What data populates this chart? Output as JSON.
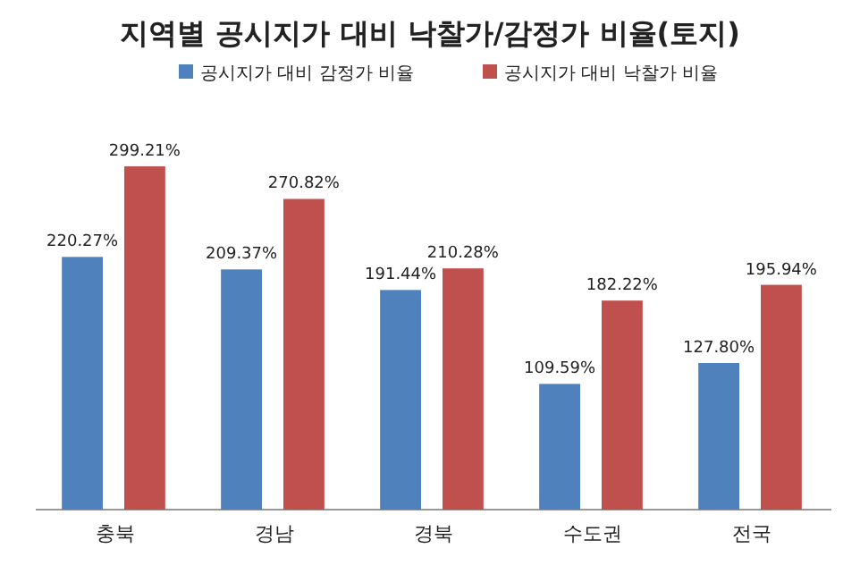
{
  "chart_data": {
    "type": "bar",
    "title": "지역별 공시지가 대비 낙찰가/감정가 비율(토지)",
    "categories": [
      "충북",
      "경남",
      "경북",
      "수도권",
      "전국"
    ],
    "series": [
      {
        "name": "공시지가 대비 감정가 비율",
        "color": "#4f81bd",
        "values": [
          220.27,
          209.37,
          191.44,
          109.59,
          127.8
        ],
        "value_labels": [
          "220.27%",
          "209.37%",
          "191.44%",
          "109.59%",
          "127.80%"
        ]
      },
      {
        "name": "공시지가 대비 낙찰가 비율",
        "color": "#c0504d",
        "values": [
          299.21,
          270.82,
          210.28,
          182.22,
          195.94
        ],
        "value_labels": [
          "299.21%",
          "270.82%",
          "210.28%",
          "182.22%",
          "195.94%"
        ]
      }
    ],
    "legend": "top",
    "grid": false
  }
}
